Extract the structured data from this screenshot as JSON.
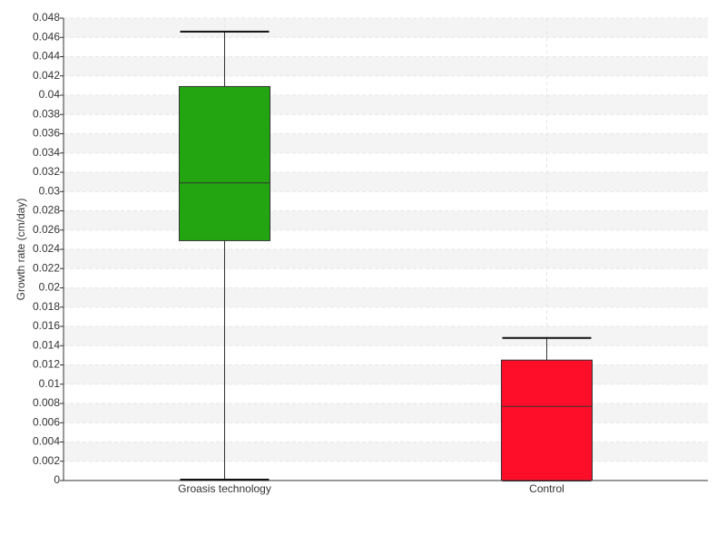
{
  "chart_data": {
    "type": "box",
    "ylabel": "Growth rate (cm/day)",
    "categories": [
      "Groasis technology",
      "Control"
    ],
    "boxes": [
      {
        "min": 0.0001,
        "q1": 0.0249,
        "median": 0.0309,
        "q3": 0.0409,
        "max": 0.0466,
        "color": "#22a511"
      },
      {
        "min": 0,
        "q1": 0,
        "median": 0.0077,
        "q3": 0.0125,
        "max": 0.0148,
        "color": "#ff0e29"
      }
    ],
    "ylim": [
      0,
      0.048
    ],
    "yticks": [
      0,
      0.002,
      0.004,
      0.006,
      0.008,
      0.01,
      0.012,
      0.014,
      0.016,
      0.018,
      0.02,
      0.022,
      0.024,
      0.026,
      0.028,
      0.03,
      0.032,
      0.034,
      0.036,
      0.038,
      0.04,
      0.042,
      0.044,
      0.046,
      0.048
    ],
    "grid": true
  }
}
